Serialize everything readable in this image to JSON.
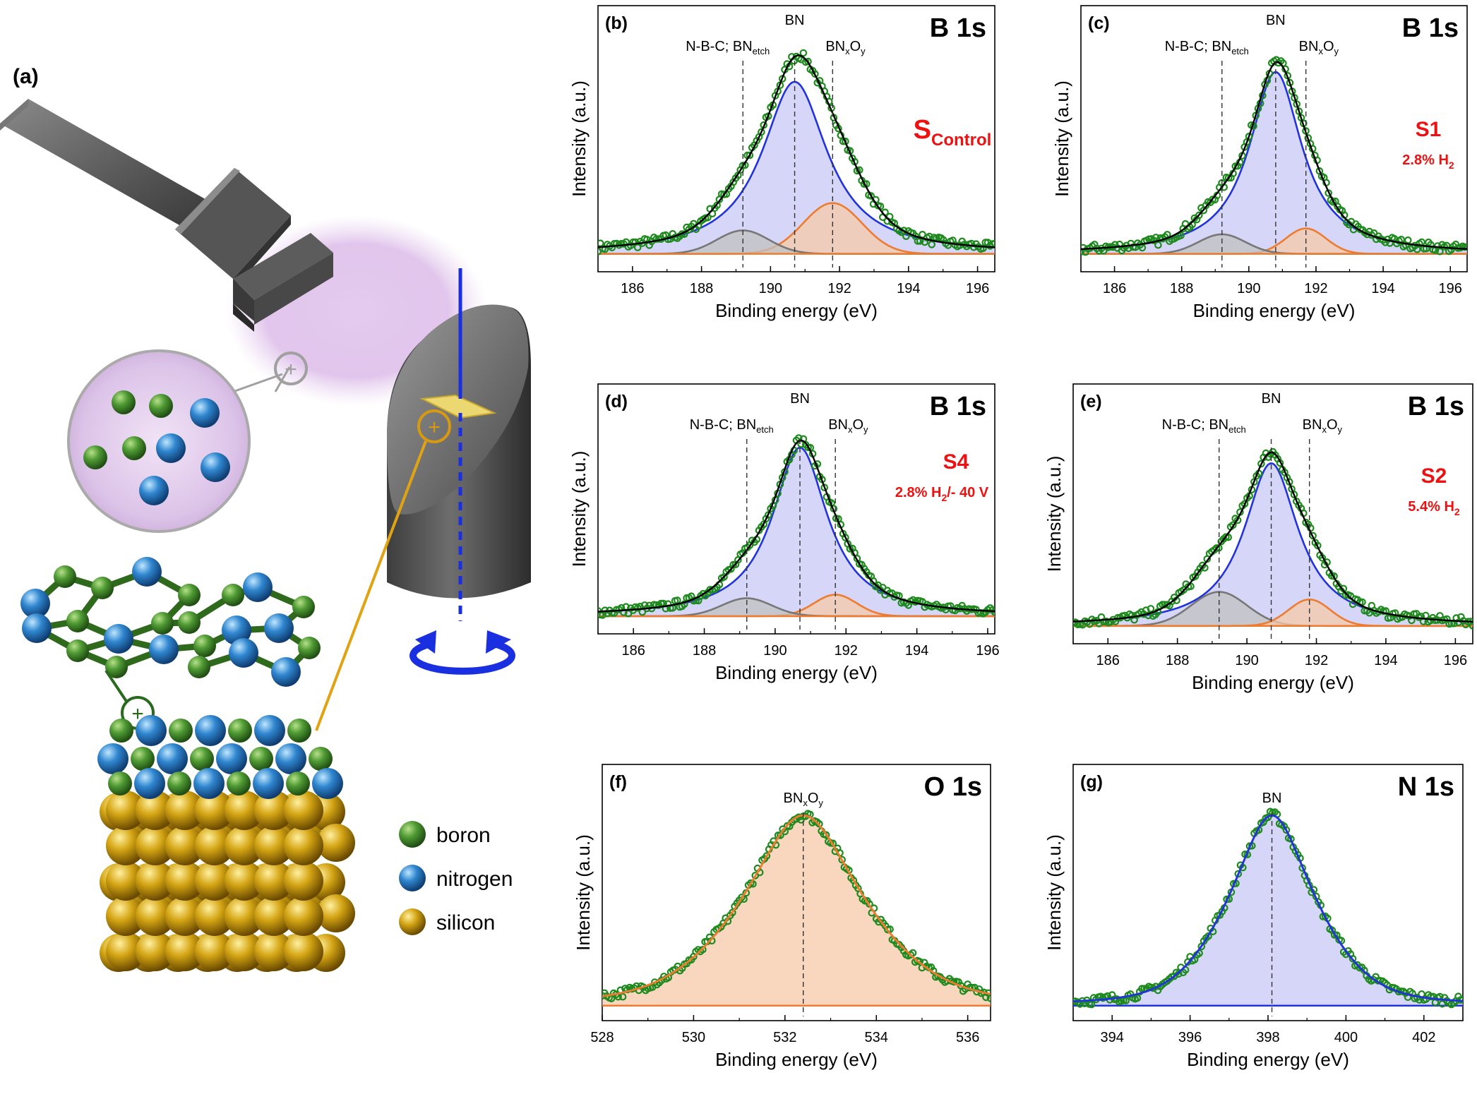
{
  "panel_a": {
    "label": "(a)",
    "legend": [
      {
        "name": "boron",
        "color": "#4a8a2e"
      },
      {
        "name": "nitrogen",
        "color": "#2f7fc4"
      },
      {
        "name": "silicon",
        "color": "#c99a12"
      }
    ],
    "plus_symbol": "+"
  },
  "colors": {
    "data": "#1e8a1e",
    "envelope": "#000000",
    "bn": "#2233dd",
    "bn_fill": "#c8caf5",
    "bnxoy": "#ee7c30",
    "bnxoy_fill": "#f6c9a8",
    "nbc": "#777777",
    "nbc_fill": "#c0c0c0",
    "sample": "#ee1111",
    "ref_line": "#333333"
  },
  "chart_data": [
    {
      "type": "line",
      "id": "b",
      "panel_label": "(b)",
      "title": "B 1s",
      "xlabel": "Binding energy (eV)",
      "ylabel": "Intensity (a.u.)",
      "xlim": [
        185,
        196.5
      ],
      "xticks": [
        186,
        188,
        190,
        192,
        194,
        196
      ],
      "sample_name": "S",
      "sample_sub": "Control",
      "condition": "",
      "peaks": [
        {
          "name": "N-B-C; BN",
          "name_sub": "etch",
          "position": 189.2,
          "amplitude": 0.12,
          "width": 0.75,
          "type": "gaussian",
          "color": "nbc"
        },
        {
          "name": "BN",
          "position": 190.7,
          "amplitude": 0.88,
          "width": 1.15,
          "type": "lorentzian",
          "color": "bn"
        },
        {
          "name": "BN",
          "name_sub": "x",
          "name_tail": "O",
          "name_sub2": "y",
          "position": 191.8,
          "amplitude": 0.26,
          "width": 0.85,
          "type": "gaussian",
          "color": "bnxoy"
        }
      ]
    },
    {
      "type": "line",
      "id": "c",
      "panel_label": "(c)",
      "title": "B 1s",
      "xlabel": "Binding energy (eV)",
      "ylabel": "Intensity (a.u.)",
      "xlim": [
        185,
        196.5
      ],
      "xticks": [
        186,
        188,
        190,
        192,
        194,
        196
      ],
      "sample_name": "S1",
      "sample_sub": "",
      "condition": "2.8% H",
      "condition_sub": "2",
      "peaks": [
        {
          "name": "N-B-C; BN",
          "name_sub": "etch",
          "position": 189.2,
          "amplitude": 0.1,
          "width": 0.7,
          "type": "gaussian",
          "color": "nbc"
        },
        {
          "name": "BN",
          "position": 190.8,
          "amplitude": 0.93,
          "width": 0.95,
          "type": "lorentzian",
          "color": "bn"
        },
        {
          "name": "BN",
          "name_sub": "x",
          "name_tail": "O",
          "name_sub2": "y",
          "position": 191.7,
          "amplitude": 0.13,
          "width": 0.6,
          "type": "gaussian",
          "color": "bnxoy"
        }
      ]
    },
    {
      "type": "line",
      "id": "d",
      "panel_label": "(d)",
      "title": "B 1s",
      "xlabel": "Binding energy (eV)",
      "ylabel": "Intensity (a.u.)",
      "xlim": [
        185,
        196.2
      ],
      "xticks": [
        186,
        188,
        190,
        192,
        194,
        196
      ],
      "sample_name": "S4",
      "sample_sub": "",
      "condition": "2.8% H",
      "condition_sub": "2",
      "condition_tail": "/- 40 V",
      "peaks": [
        {
          "name": "N-B-C; BN",
          "name_sub": "etch",
          "position": 189.2,
          "amplitude": 0.1,
          "width": 0.7,
          "type": "gaussian",
          "color": "nbc"
        },
        {
          "name": "BN",
          "position": 190.7,
          "amplitude": 0.94,
          "width": 0.95,
          "type": "lorentzian",
          "color": "bn"
        },
        {
          "name": "BN",
          "name_sub": "x",
          "name_tail": "O",
          "name_sub2": "y",
          "position": 191.7,
          "amplitude": 0.12,
          "width": 0.6,
          "type": "gaussian",
          "color": "bnxoy"
        }
      ]
    },
    {
      "type": "line",
      "id": "e",
      "panel_label": "(e)",
      "title": "B 1s",
      "xlabel": "Binding energy (eV)",
      "ylabel": "Intensity (a.u.)",
      "xlim": [
        185,
        196.5
      ],
      "xticks": [
        186,
        188,
        190,
        192,
        194,
        196
      ],
      "sample_name": "S2",
      "sample_sub": "",
      "condition": "5.4% H",
      "condition_sub": "2",
      "peaks": [
        {
          "name": "N-B-C; BN",
          "name_sub": "etch",
          "position": 189.2,
          "amplitude": 0.18,
          "width": 0.8,
          "type": "gaussian",
          "color": "nbc"
        },
        {
          "name": "BN",
          "position": 190.7,
          "amplitude": 0.86,
          "width": 0.95,
          "type": "lorentzian",
          "color": "bn"
        },
        {
          "name": "BN",
          "name_sub": "x",
          "name_tail": "O",
          "name_sub2": "y",
          "position": 191.8,
          "amplitude": 0.14,
          "width": 0.6,
          "type": "gaussian",
          "color": "bnxoy"
        }
      ]
    },
    {
      "type": "line",
      "id": "f",
      "panel_label": "(f)",
      "title": "O 1s",
      "xlabel": "Binding energy (eV)",
      "ylabel": "Intensity (a.u.)",
      "xlim": [
        528,
        536.5
      ],
      "xticks": [
        528,
        530,
        532,
        534,
        536
      ],
      "sample_name": "",
      "sample_sub": "",
      "condition": "",
      "peaks": [
        {
          "name": "BN",
          "name_sub": "x",
          "name_tail": "O",
          "name_sub2": "y",
          "position": 532.4,
          "amplitude": 0.98,
          "width": 1.25,
          "type": "voigt",
          "color": "bnxoy"
        }
      ]
    },
    {
      "type": "line",
      "id": "g",
      "panel_label": "(g)",
      "title": "N 1s",
      "xlabel": "Binding energy (eV)",
      "ylabel": "Intensity (a.u.)",
      "xlim": [
        393,
        403
      ],
      "xticks": [
        394,
        396,
        398,
        400,
        402
      ],
      "sample_name": "",
      "sample_sub": "",
      "condition": "",
      "peaks": [
        {
          "name": "BN",
          "position": 398.1,
          "amplitude": 0.98,
          "width": 1.05,
          "type": "voigt",
          "color": "bn"
        }
      ]
    }
  ]
}
